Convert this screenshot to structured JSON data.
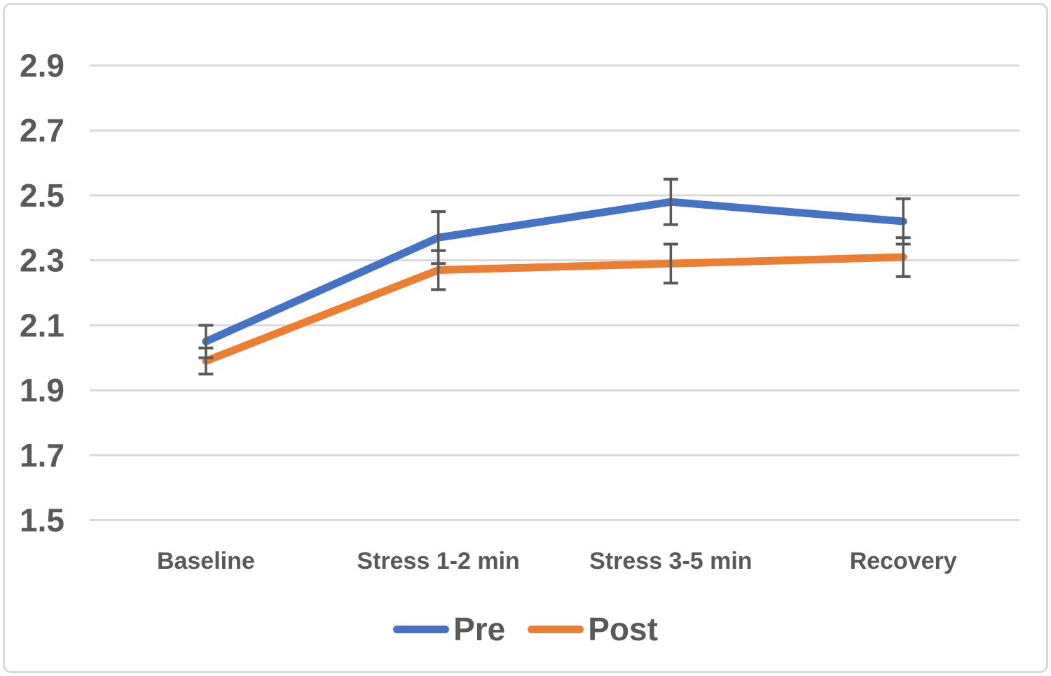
{
  "chart_data": {
    "type": "line",
    "categories": [
      "Baseline",
      "Stress 1-2 min",
      "Stress 3-5 min",
      "Recovery"
    ],
    "series": [
      {
        "name": "Pre",
        "color": "#4472C4",
        "values": [
          2.05,
          2.37,
          2.48,
          2.42
        ],
        "errors": [
          0.05,
          0.08,
          0.07,
          0.07
        ]
      },
      {
        "name": "Post",
        "color": "#ED7D31",
        "values": [
          1.99,
          2.27,
          2.29,
          2.31
        ],
        "errors": [
          0.04,
          0.06,
          0.06,
          0.06
        ]
      }
    ],
    "title": "",
    "xlabel": "",
    "ylabel": "",
    "y_axis": {
      "min": 1.5,
      "max": 2.9,
      "step": 0.2,
      "tick_labels": [
        "2.9",
        "2.7",
        "2.5",
        "2.3",
        "2.1",
        "1.9",
        "1.7",
        "1.5"
      ]
    },
    "grid": true,
    "legend_position": "bottom",
    "colors": {
      "gridline": "#D9D9D9",
      "frame_border": "#D9D9D9",
      "axis_text": "#595959",
      "error_bar": "#595959",
      "background": "#FFFFFF"
    }
  }
}
